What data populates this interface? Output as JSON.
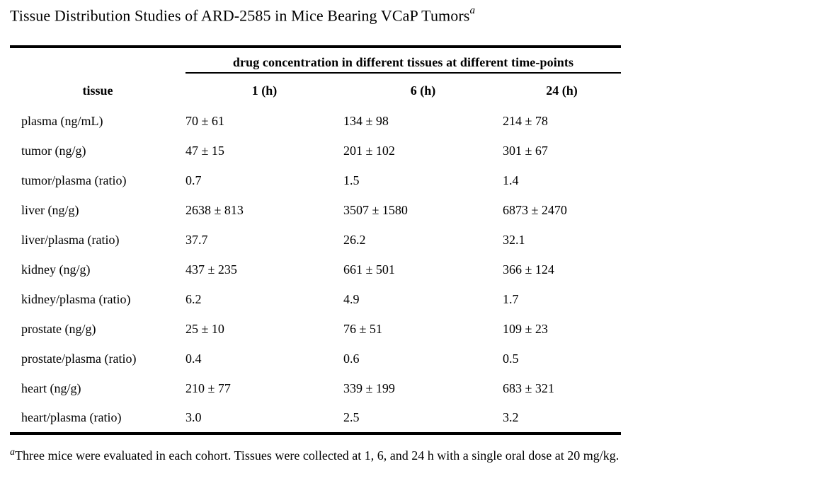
{
  "title": {
    "text": "Tissue Distribution Studies of ARD-2585 in Mice Bearing VCaP Tumors",
    "superscript": "a"
  },
  "table": {
    "span_header": "drug concentration in different tissues at different time-points",
    "columns": [
      "tissue",
      "1 (h)",
      "6 (h)",
      "24 (h)"
    ],
    "rows": [
      {
        "tissue": "plasma (ng/mL)",
        "values": [
          "70 ± 61",
          "134 ± 98",
          "214 ± 78"
        ]
      },
      {
        "tissue": "tumor (ng/g)",
        "values": [
          "47 ± 15",
          "201 ± 102",
          "301 ± 67"
        ]
      },
      {
        "tissue": "tumor/plasma (ratio)",
        "values": [
          "0.7",
          "1.5",
          "1.4"
        ]
      },
      {
        "tissue": "liver (ng/g)",
        "values": [
          "2638 ± 813",
          "3507 ± 1580",
          "6873 ± 2470"
        ]
      },
      {
        "tissue": "liver/plasma (ratio)",
        "values": [
          "37.7",
          "26.2",
          "32.1"
        ]
      },
      {
        "tissue": "kidney (ng/g)",
        "values": [
          "437 ± 235",
          "661 ± 501",
          "366 ± 124"
        ]
      },
      {
        "tissue": "kidney/plasma (ratio)",
        "values": [
          "6.2",
          "4.9",
          "1.7"
        ]
      },
      {
        "tissue": "prostate (ng/g)",
        "values": [
          "25 ± 10",
          "76 ± 51",
          "109 ± 23"
        ]
      },
      {
        "tissue": "prostate/plasma (ratio)",
        "values": [
          "0.4",
          "0.6",
          "0.5"
        ]
      },
      {
        "tissue": "heart (ng/g)",
        "values": [
          "210 ± 77",
          "339 ± 199",
          "683 ± 321"
        ]
      },
      {
        "tissue": "heart/plasma (ratio)",
        "values": [
          "3.0",
          "2.5",
          "3.2"
        ]
      }
    ]
  },
  "footnote": {
    "marker": "a",
    "text": "Three mice were evaluated in each cohort. Tissues were collected at 1, 6, and 24 h with a single oral dose at 20 mg/kg."
  },
  "colors": {
    "text": "#000000",
    "background": "#ffffff",
    "rule": "#000000"
  }
}
